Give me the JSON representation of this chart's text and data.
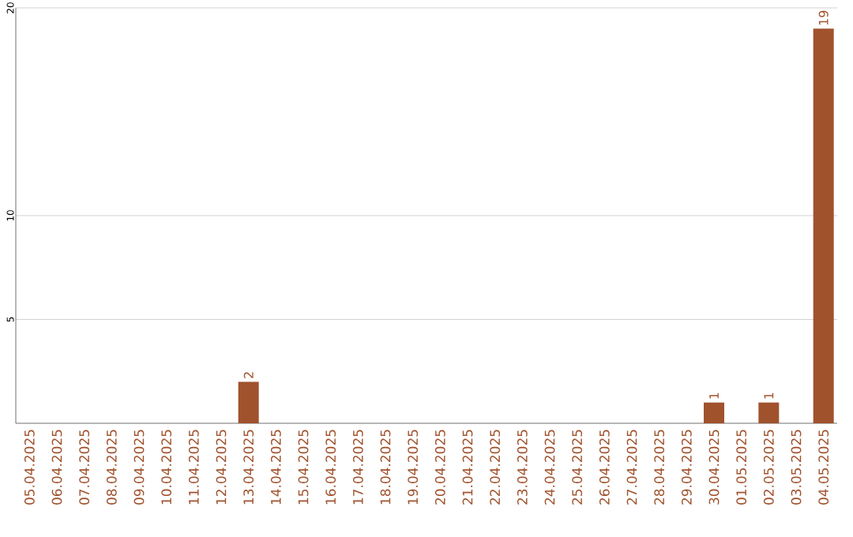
{
  "chart_data": {
    "type": "bar",
    "categories": [
      "05.04.2025",
      "06.04.2025",
      "07.04.2025",
      "08.04.2025",
      "09.04.2025",
      "10.04.2025",
      "11.04.2025",
      "12.04.2025",
      "13.04.2025",
      "14.04.2025",
      "15.04.2025",
      "16.04.2025",
      "17.04.2025",
      "18.04.2025",
      "19.04.2025",
      "20.04.2025",
      "21.04.2025",
      "22.04.2025",
      "23.04.2025",
      "24.04.2025",
      "25.04.2025",
      "26.04.2025",
      "27.04.2025",
      "28.04.2025",
      "29.04.2025",
      "30.04.2025",
      "01.05.2025",
      "02.05.2025",
      "03.05.2025",
      "04.05.2025"
    ],
    "values": [
      0,
      0,
      0,
      0,
      0,
      0,
      0,
      0,
      2,
      0,
      0,
      0,
      0,
      0,
      0,
      0,
      0,
      0,
      0,
      0,
      0,
      0,
      0,
      0,
      0,
      1,
      0,
      1,
      0,
      19
    ],
    "value_labels": [
      null,
      null,
      null,
      null,
      null,
      null,
      null,
      null,
      "2",
      null,
      null,
      null,
      null,
      null,
      null,
      null,
      null,
      null,
      null,
      null,
      null,
      null,
      null,
      null,
      null,
      "1",
      null,
      "1",
      null,
      "19"
    ],
    "color": "#a0522d",
    "ylim": [
      0,
      20
    ],
    "yticks": [
      5,
      10,
      20
    ],
    "grid": "y"
  }
}
